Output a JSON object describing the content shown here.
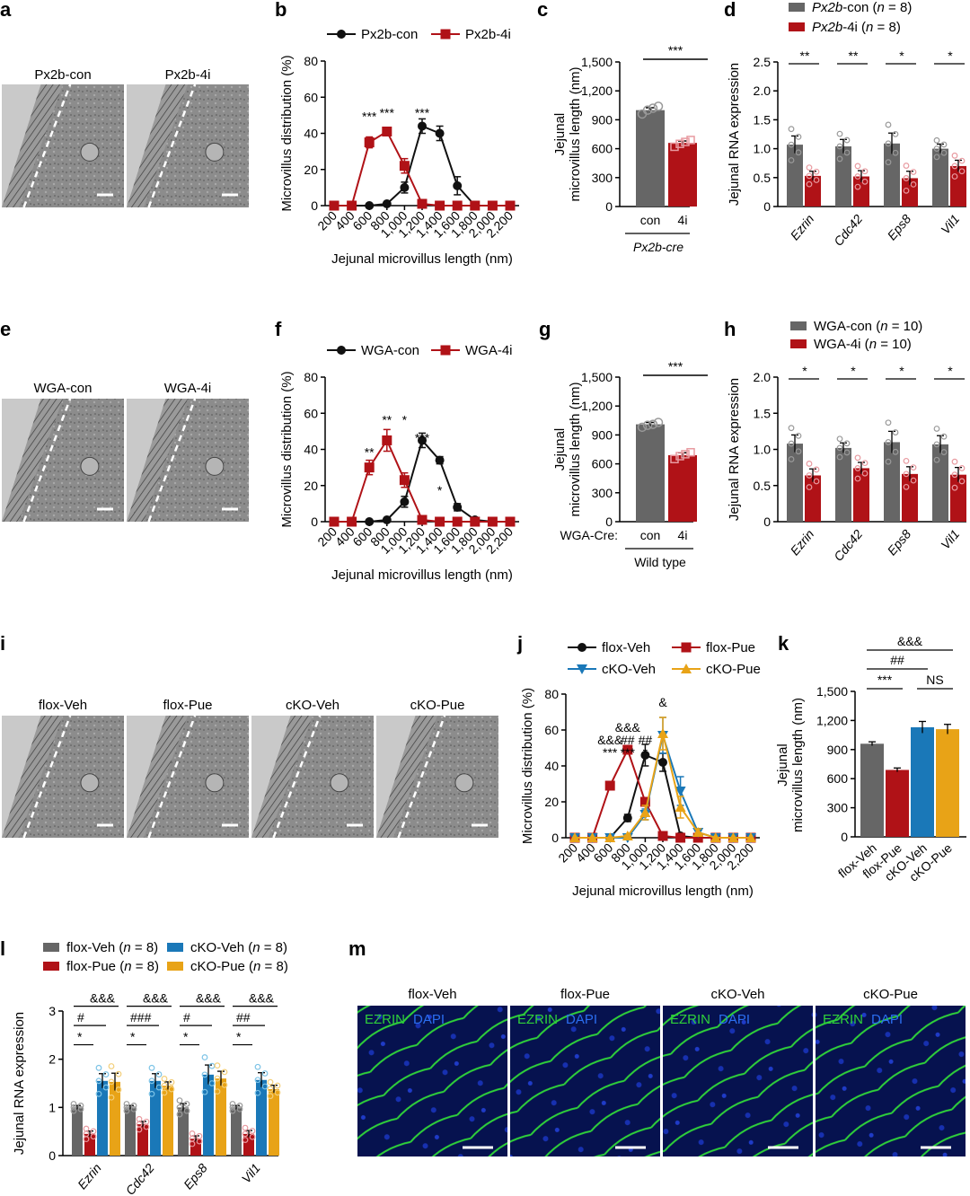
{
  "colors": {
    "black": "#111111",
    "red": "#b01217",
    "gray": "#666666",
    "pink": "#e89aa0",
    "blue": "#1a78b8",
    "lightblue": "#7cc3e6",
    "gold": "#e8a317",
    "lightgold": "#f3cf7a",
    "em_bg": "#8f8f8f",
    "fluor_green": "#2fd13a",
    "fluor_blue": "#0a1e8c",
    "dapi_label": "#2b6ef0",
    "ezrin_label": "#2fd13a"
  },
  "panels": {
    "a": {
      "letter": "a",
      "images": [
        "Px2b-con",
        "Px2b-4i"
      ]
    },
    "b": {
      "letter": "b"
    },
    "c": {
      "letter": "c"
    },
    "d": {
      "letter": "d"
    },
    "e": {
      "letter": "e",
      "images": [
        "WGA-con",
        "WGA-4i"
      ]
    },
    "f": {
      "letter": "f"
    },
    "g": {
      "letter": "g"
    },
    "h": {
      "letter": "h"
    },
    "i": {
      "letter": "i",
      "images": [
        "flox-Veh",
        "flox-Pue",
        "cKO-Veh",
        "cKO-Pue"
      ]
    },
    "j": {
      "letter": "j"
    },
    "k": {
      "letter": "k"
    },
    "l": {
      "letter": "l"
    },
    "m": {
      "letter": "m",
      "images": [
        "flox-Veh",
        "flox-Pue",
        "cKO-Veh",
        "cKO-Pue"
      ],
      "stain_ezrin": "EZRIN",
      "stain_dapi": "DAPI"
    }
  },
  "chart_data": [
    {
      "panel": "b",
      "type": "line",
      "x": [
        200,
        400,
        600,
        800,
        1000,
        1200,
        1400,
        1600,
        1800,
        2000,
        2200
      ],
      "x_tick_labels": [
        "200",
        "400",
        "600",
        "800",
        "1,000",
        "1,200",
        "1,400",
        "1,600",
        "1,800",
        "2,000",
        "2,200"
      ],
      "series": [
        {
          "name": "Px2b-con",
          "color": "black",
          "marker": "circle",
          "values": [
            0,
            0,
            0,
            1,
            10,
            44,
            40,
            11,
            0,
            0,
            0
          ],
          "err": [
            0,
            0,
            0,
            0.5,
            3,
            4,
            4,
            5,
            0,
            0,
            0
          ]
        },
        {
          "name": "Px2b-4i",
          "color": "red",
          "marker": "square",
          "values": [
            0,
            0,
            35,
            41,
            22,
            1,
            0,
            0,
            0,
            0,
            0
          ],
          "err": [
            0,
            0,
            3,
            2,
            4,
            0.5,
            0,
            0,
            0,
            0,
            0
          ]
        }
      ],
      "sig": [
        "***",
        "***",
        "***"
      ],
      "ylim": [
        0,
        80
      ],
      "yticks": [
        0,
        20,
        40,
        60,
        80
      ],
      "ylabel": "Microvillus distribution (%)",
      "xlabel": "Jejunal microvillus length (nm)"
    },
    {
      "panel": "c",
      "type": "bar",
      "categories": [
        "con",
        "4i"
      ],
      "values": [
        1000,
        660
      ],
      "err": [
        25,
        20
      ],
      "points": [
        [
          960,
          1000,
          1020,
          1040
        ],
        [
          620,
          650,
          670,
          690
        ]
      ],
      "sig": "***",
      "ylim": [
        0,
        1500
      ],
      "yticks": [
        0,
        300,
        600,
        900,
        1200,
        1500
      ],
      "ytick_labels": [
        "0",
        "300",
        "600",
        "900",
        "1,200",
        "1,500"
      ],
      "ylabel": "Jejunal microvillus length (nm)",
      "group_label": "Px2b-cre"
    },
    {
      "panel": "d",
      "type": "bar",
      "categories": [
        "Ezrin",
        "Cdc42",
        "Eps8",
        "Vil1"
      ],
      "series": [
        {
          "name": "Px2b-con",
          "n": "n = 8",
          "color": "gray",
          "values": [
            1.07,
            1.04,
            1.09,
            1.0
          ],
          "err": [
            0.15,
            0.12,
            0.18,
            0.08
          ]
        },
        {
          "name": "Px2b-4i",
          "n": "n = 8",
          "color": "red",
          "values": [
            0.53,
            0.52,
            0.49,
            0.7
          ],
          "err": [
            0.08,
            0.1,
            0.12,
            0.1
          ]
        }
      ],
      "sig": [
        "**",
        "**",
        "*",
        "*"
      ],
      "ylim": [
        0,
        2.5
      ],
      "yticks": [
        0,
        0.5,
        1.0,
        1.5,
        2.0,
        2.5
      ],
      "ytick_labels": [
        "0",
        "0.5",
        "1.0",
        "1.5",
        "2.0",
        "2.5"
      ],
      "ylabel": "Jejunal RNA expression"
    },
    {
      "panel": "f",
      "type": "line",
      "x": [
        200,
        400,
        600,
        800,
        1000,
        1200,
        1400,
        1600,
        1800,
        2000,
        2200
      ],
      "x_tick_labels": [
        "200",
        "400",
        "600",
        "800",
        "1,000",
        "1,200",
        "1,400",
        "1,600",
        "1,800",
        "2,000",
        "2,200"
      ],
      "series": [
        {
          "name": "WGA-con",
          "color": "black",
          "marker": "circle",
          "values": [
            0,
            0,
            0,
            1,
            11,
            45,
            34,
            8,
            1,
            0,
            0
          ],
          "err": [
            0,
            0,
            0,
            0.5,
            3,
            4,
            2,
            2,
            0,
            0,
            0
          ]
        },
        {
          "name": "WGA-4i",
          "color": "red",
          "marker": "square",
          "values": [
            0,
            0,
            30,
            45,
            23,
            1,
            0,
            0,
            0,
            0,
            0
          ],
          "err": [
            0,
            0,
            4,
            6,
            4,
            0.5,
            0,
            0,
            0,
            0,
            0
          ]
        }
      ],
      "sig": [
        "**",
        "**",
        "*",
        "***",
        "*"
      ],
      "ylim": [
        0,
        80
      ],
      "yticks": [
        0,
        20,
        40,
        60,
        80
      ],
      "ylabel": "Microvillus distribution (%)",
      "xlabel": "Jejunal microvillus length (nm)"
    },
    {
      "panel": "g",
      "type": "bar",
      "categories": [
        "con",
        "4i"
      ],
      "values": [
        1010,
        690
      ],
      "err": [
        20,
        25
      ],
      "points": [
        [
          980,
          1000,
          1010,
          1030
        ],
        [
          650,
          680,
          700,
          720
        ]
      ],
      "sig": "***",
      "ylim": [
        0,
        1500
      ],
      "yticks": [
        0,
        300,
        600,
        900,
        1200,
        1500
      ],
      "ytick_labels": [
        "0",
        "300",
        "600",
        "900",
        "1,200",
        "1,500"
      ],
      "ylabel": "Jejunal microvillus length (nm)",
      "xprefix": "WGA-Cre:",
      "group_label": "Wild type"
    },
    {
      "panel": "h",
      "type": "bar",
      "categories": [
        "Ezrin",
        "Cdc42",
        "Eps8",
        "Vil1"
      ],
      "series": [
        {
          "name": "WGA-con",
          "n": "n = 10",
          "color": "gray",
          "values": [
            1.08,
            1.02,
            1.1,
            1.07
          ],
          "err": [
            0.12,
            0.07,
            0.15,
            0.12
          ]
        },
        {
          "name": "WGA-4i",
          "n": "n = 10",
          "color": "red",
          "values": [
            0.64,
            0.74,
            0.66,
            0.65
          ],
          "err": [
            0.09,
            0.08,
            0.1,
            0.1
          ]
        }
      ],
      "sig": [
        "*",
        "*",
        "*",
        "*"
      ],
      "ylim": [
        0,
        2.0
      ],
      "yticks": [
        0,
        0.5,
        1.0,
        1.5,
        2.0
      ],
      "ytick_labels": [
        "0",
        "0.5",
        "1.0",
        "1.5",
        "2.0"
      ],
      "ylabel": "Jejunal RNA expression"
    },
    {
      "panel": "j",
      "type": "line",
      "x": [
        200,
        400,
        600,
        800,
        1000,
        1200,
        1400,
        1600,
        1800,
        2000,
        2200
      ],
      "x_tick_labels": [
        "200",
        "400",
        "600",
        "800",
        "1,000",
        "1,200",
        "1,400",
        "1,600",
        "1,800",
        "2,000",
        "2,200"
      ],
      "series": [
        {
          "name": "flox-Veh",
          "color": "black",
          "marker": "circle",
          "values": [
            0,
            0,
            0,
            11,
            46,
            42,
            1,
            0,
            0,
            0,
            0
          ],
          "err": [
            0,
            0,
            0,
            2,
            6,
            5,
            0.5,
            0,
            0,
            0,
            0
          ]
        },
        {
          "name": "flox-Pue",
          "color": "red",
          "marker": "square",
          "values": [
            0,
            0,
            29,
            49,
            20,
            1,
            0,
            0,
            0,
            0,
            0
          ],
          "err": [
            0,
            0,
            2,
            2,
            2,
            0.5,
            0,
            0,
            0,
            0,
            0
          ]
        },
        {
          "name": "cKO-Veh",
          "color": "blue",
          "marker": "triangle-down",
          "values": [
            0,
            0,
            0,
            0,
            13,
            57,
            26,
            3,
            0,
            0,
            0
          ],
          "err": [
            0,
            0,
            0,
            0,
            3,
            10,
            8,
            2,
            0,
            0,
            0
          ]
        },
        {
          "name": "cKO-Pue",
          "color": "gold",
          "marker": "triangle-up",
          "values": [
            0,
            0,
            0,
            1,
            14,
            58,
            17,
            3,
            0,
            0,
            0
          ],
          "err": [
            0,
            0,
            0,
            0.5,
            4,
            9,
            6,
            2,
            0,
            0,
            0
          ]
        }
      ],
      "sig": [
        "&&&",
        "***",
        "&&&",
        "##",
        "***",
        "##",
        "*",
        "&"
      ],
      "ylim": [
        0,
        80
      ],
      "yticks": [
        0,
        20,
        40,
        60,
        80
      ],
      "ylabel": "Microvillus distribution (%)",
      "xlabel": "Jejunal microvillus length (nm)"
    },
    {
      "panel": "k",
      "type": "bar",
      "categories": [
        "flox-Veh",
        "flox-Pue",
        "cKO-Veh",
        "cKO-Pue"
      ],
      "values": [
        960,
        690,
        1130,
        1110
      ],
      "err": [
        20,
        20,
        60,
        50
      ],
      "colors": [
        "gray",
        "red",
        "blue",
        "gold"
      ],
      "sig": [
        "***",
        "##",
        "&&&",
        "NS"
      ],
      "ylim": [
        0,
        1500
      ],
      "yticks": [
        0,
        300,
        600,
        900,
        1200,
        1500
      ],
      "ytick_labels": [
        "0",
        "300",
        "600",
        "900",
        "1,200",
        "1,500"
      ],
      "ylabel": "Jejunal microvillus length (nm)"
    },
    {
      "panel": "l",
      "type": "bar",
      "categories": [
        "Ezrin",
        "Cdc42",
        "Eps8",
        "Vil1"
      ],
      "series": [
        {
          "name": "flox-Veh",
          "n": "n = 8",
          "color": "gray",
          "values": [
            1.0,
            1.0,
            1.0,
            1.0
          ],
          "err": [
            0.04,
            0.04,
            0.08,
            0.04
          ]
        },
        {
          "name": "flox-Pue",
          "n": "n = 8",
          "color": "red",
          "values": [
            0.45,
            0.65,
            0.35,
            0.45
          ],
          "err": [
            0.06,
            0.06,
            0.06,
            0.07
          ]
        },
        {
          "name": "cKO-Veh",
          "n": "n = 8",
          "color": "blue",
          "values": [
            1.55,
            1.55,
            1.68,
            1.57
          ],
          "err": [
            0.15,
            0.15,
            0.2,
            0.15
          ]
        },
        {
          "name": "cKO-Pue",
          "n": "n = 8",
          "color": "gold",
          "values": [
            1.53,
            1.45,
            1.6,
            1.38
          ],
          "err": [
            0.18,
            0.08,
            0.15,
            0.08
          ]
        }
      ],
      "sig_groups": [
        [
          "*",
          "#",
          "&&&"
        ],
        [
          "*",
          "###",
          "&&&"
        ],
        [
          "*",
          "#",
          "&&&"
        ],
        [
          "*",
          "##",
          "&&&"
        ]
      ],
      "ylim": [
        0,
        3
      ],
      "yticks": [
        0,
        1,
        2,
        3
      ],
      "ytick_labels": [
        "0",
        "1",
        "2",
        "3"
      ],
      "ylabel": "Jejunal RNA expression"
    }
  ]
}
